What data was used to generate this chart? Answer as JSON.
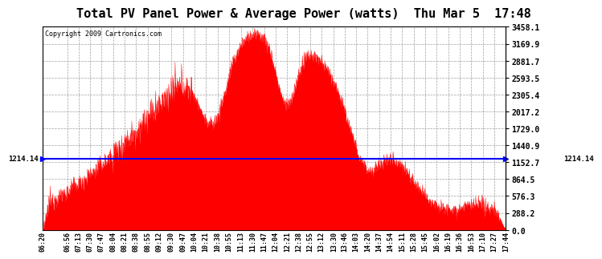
{
  "title": "Total PV Panel Power & Average Power (watts)  Thu Mar 5  17:48",
  "copyright": "Copyright 2009 Cartronics.com",
  "avg_power": 1214.14,
  "avg_label": "1214.14",
  "y_max": 3458.1,
  "y_min": 0.0,
  "y_ticks": [
    0.0,
    288.2,
    576.3,
    864.5,
    1152.7,
    1440.9,
    1729.0,
    2017.2,
    2305.4,
    2593.5,
    2881.7,
    3169.9,
    3458.1
  ],
  "bar_color": "#FF0000",
  "line_color": "#0000FF",
  "bg_color": "#FFFFFF",
  "grid_color": "#AAAAAA",
  "title_fontsize": 11,
  "copyright_fontsize": 6.5,
  "tick_labels": [
    "06:20",
    "06:56",
    "07:13",
    "07:30",
    "07:47",
    "08:04",
    "08:21",
    "08:38",
    "08:55",
    "09:12",
    "09:30",
    "09:47",
    "10:04",
    "10:21",
    "10:38",
    "10:55",
    "11:13",
    "11:30",
    "11:47",
    "12:04",
    "12:21",
    "12:38",
    "12:55",
    "13:12",
    "13:30",
    "13:46",
    "14:03",
    "14:20",
    "14:37",
    "14:54",
    "15:11",
    "15:28",
    "15:45",
    "16:02",
    "16:19",
    "16:36",
    "16:53",
    "17:10",
    "17:27",
    "17:44"
  ]
}
